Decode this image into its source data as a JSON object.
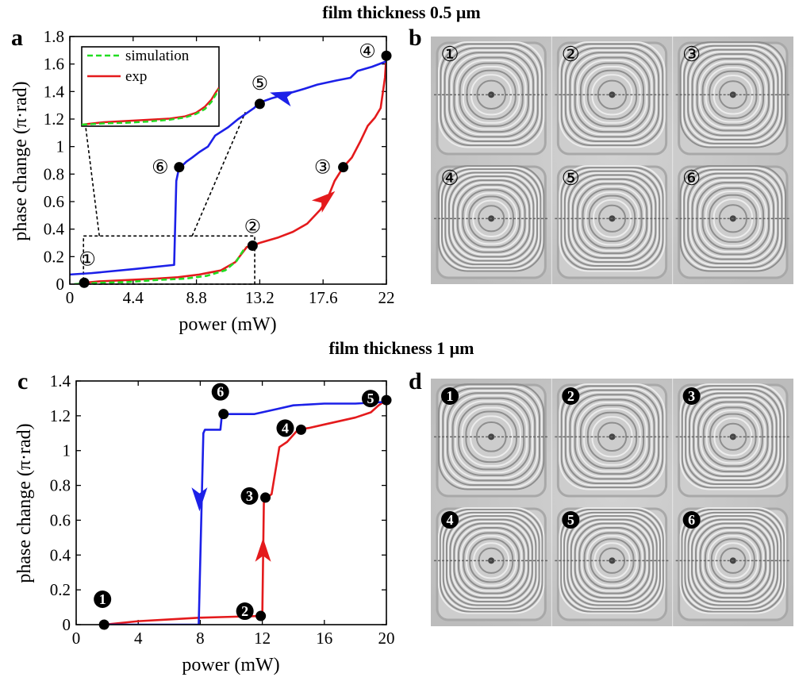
{
  "titles": {
    "top": "film thickness 0.5 μm",
    "bottom": "film thickness 1 μm"
  },
  "panel_labels": {
    "a": "a",
    "b": "b",
    "c": "c",
    "d": "d"
  },
  "colors": {
    "blue": "#1c20e8",
    "red": "#e41a1c",
    "green": "#22dd22",
    "black": "#000000"
  },
  "chart_data": [
    {
      "id": "a",
      "type": "line",
      "xlabel": "power (mW)",
      "ylabel": "phase change (π·rad)",
      "xlim": [
        0,
        22
      ],
      "ylim": [
        0,
        1.8
      ],
      "xticks": [
        0,
        4.4,
        8.8,
        13.2,
        17.6,
        22
      ],
      "xtick_labels": [
        "0",
        "4.4",
        "8.8",
        "13.2",
        "17.6",
        "22"
      ],
      "yticks": [
        0,
        0.2,
        0.4,
        0.6,
        0.8,
        1,
        1.2,
        1.4,
        1.6,
        1.8
      ],
      "ytick_labels": [
        "0",
        "0.2",
        "0.4",
        "0.6",
        "0.8",
        "1",
        "1.2",
        "1.4",
        "1.6",
        "1.8"
      ],
      "legend": {
        "position": "inset-top-left",
        "entries": [
          "simulation",
          "exp"
        ]
      },
      "series": [
        {
          "name": "exp",
          "color": "red",
          "style": "solid",
          "x": [
            1.0,
            2.0,
            4.0,
            6.0,
            7.5,
            9.0,
            10.5,
            11.5,
            12.3,
            12.7,
            13.2,
            14.5,
            15.5,
            16.5,
            17.4,
            17.9,
            18.4,
            19.0,
            19.6,
            20.2,
            20.7,
            21.2,
            21.6,
            21.9,
            22.0
          ],
          "y": [
            0.01,
            0.02,
            0.03,
            0.04,
            0.05,
            0.07,
            0.1,
            0.16,
            0.27,
            0.28,
            0.3,
            0.34,
            0.38,
            0.44,
            0.54,
            0.62,
            0.75,
            0.85,
            0.92,
            1.04,
            1.15,
            1.21,
            1.28,
            1.5,
            1.66
          ]
        },
        {
          "name": "simulation",
          "color": "green",
          "style": "dashed",
          "x": [
            0.3,
            2.0,
            4.0,
            6.0,
            8.0,
            9.5,
            10.8,
            11.6,
            12.2
          ],
          "y": [
            0.0,
            0.01,
            0.015,
            0.03,
            0.04,
            0.06,
            0.1,
            0.17,
            0.27
          ]
        },
        {
          "name": "",
          "color": "blue",
          "style": "solid",
          "x": [
            22.0,
            21.0,
            20.0,
            19.5,
            18.5,
            17.2,
            16.3,
            15.0,
            14.0,
            13.2,
            12.8,
            11.7,
            11.0,
            10.1,
            9.6,
            9.0,
            8.5,
            8.1,
            7.9,
            7.6,
            7.4,
            7.25,
            4.5,
            1.5,
            0.0
          ],
          "y": [
            1.62,
            1.58,
            1.55,
            1.5,
            1.48,
            1.45,
            1.42,
            1.38,
            1.35,
            1.32,
            1.28,
            1.2,
            1.14,
            1.08,
            1.0,
            0.96,
            0.92,
            0.89,
            0.87,
            0.85,
            0.75,
            0.14,
            0.11,
            0.08,
            0.07
          ]
        }
      ],
      "markers": [
        {
          "label": "①",
          "x": 1.0,
          "y": 0.01
        },
        {
          "label": "②",
          "x": 12.7,
          "y": 0.28
        },
        {
          "label": "③",
          "x": 19.0,
          "y": 0.85
        },
        {
          "label": "④",
          "x": 22.0,
          "y": 1.66
        },
        {
          "label": "⑤",
          "x": 13.2,
          "y": 1.31
        },
        {
          "label": "⑥",
          "x": 7.6,
          "y": 0.85
        }
      ],
      "zoom_box": {
        "x": [
          1.0,
          12.7
        ],
        "y": [
          0,
          0.35
        ]
      },
      "inset_series": {
        "exp": {
          "x": [
            0,
            2,
            4,
            6,
            8,
            9.5,
            10.5,
            11.3,
            11.9,
            12.3,
            12.6
          ],
          "y": [
            0.0,
            0.02,
            0.03,
            0.04,
            0.05,
            0.07,
            0.1,
            0.15,
            0.21,
            0.27,
            0.31
          ]
        },
        "simulation": {
          "x": [
            0,
            2,
            4,
            6,
            8,
            9.5,
            10.5,
            11.3,
            11.9,
            12.3,
            12.6
          ],
          "y": [
            0.0,
            0.01,
            0.015,
            0.025,
            0.04,
            0.06,
            0.09,
            0.13,
            0.19,
            0.25,
            0.3
          ]
        }
      }
    },
    {
      "id": "c",
      "type": "line",
      "xlabel": "power (mW)",
      "ylabel": "phase change (π·rad)",
      "xlim": [
        0,
        20
      ],
      "ylim": [
        0,
        1.4
      ],
      "xticks": [
        0,
        4,
        8,
        12,
        16,
        20
      ],
      "xtick_labels": [
        "0",
        "4",
        "8",
        "12",
        "16",
        "20"
      ],
      "yticks": [
        0,
        0.2,
        0.4,
        0.6,
        0.8,
        1,
        1.2,
        1.4
      ],
      "ytick_labels": [
        "0",
        "0.2",
        "0.4",
        "0.6",
        "0.8",
        "1",
        "1.2",
        "1.4"
      ],
      "series": [
        {
          "name": "",
          "color": "red",
          "style": "solid",
          "x": [
            1.8,
            4.0,
            6.0,
            8.0,
            10.0,
            11.9,
            12.0,
            12.1,
            12.3,
            12.6,
            13.1,
            13.6,
            14.3,
            15.0,
            16.0,
            17.0,
            18.0,
            19.0,
            19.5,
            20.0
          ],
          "y": [
            0.0,
            0.02,
            0.03,
            0.04,
            0.045,
            0.05,
            0.05,
            0.7,
            0.73,
            0.75,
            1.02,
            1.05,
            1.12,
            1.13,
            1.15,
            1.17,
            1.19,
            1.22,
            1.26,
            1.29
          ]
        },
        {
          "name": "",
          "color": "blue",
          "style": "solid",
          "x": [
            20.0,
            18.0,
            16.0,
            14.0,
            13.0,
            11.5,
            10.5,
            9.4,
            9.3,
            8.3,
            8.2,
            7.9,
            5.0,
            2.0,
            1.8
          ],
          "y": [
            1.28,
            1.27,
            1.27,
            1.26,
            1.24,
            1.21,
            1.21,
            1.21,
            1.12,
            1.12,
            1.1,
            0.0,
            0.0,
            0.0,
            0.0
          ]
        }
      ],
      "markers": [
        {
          "label": "1",
          "x": 1.8,
          "y": 0.0
        },
        {
          "label": "2",
          "x": 11.9,
          "y": 0.05
        },
        {
          "label": "3",
          "x": 12.2,
          "y": 0.73
        },
        {
          "label": "4",
          "x": 14.5,
          "y": 1.12
        },
        {
          "label": "5",
          "x": 20.0,
          "y": 1.29
        },
        {
          "label": "6",
          "x": 9.5,
          "y": 1.21
        }
      ]
    }
  ],
  "images": {
    "b": {
      "frames": [
        "①",
        "②",
        "③",
        "④",
        "⑤",
        "⑥"
      ],
      "ring_counts": [
        14,
        14,
        15,
        17,
        16,
        15
      ]
    },
    "d": {
      "frames": [
        "1",
        "2",
        "3",
        "4",
        "5",
        "6"
      ],
      "ring_counts": [
        13,
        14,
        16,
        18,
        18,
        18
      ]
    }
  }
}
